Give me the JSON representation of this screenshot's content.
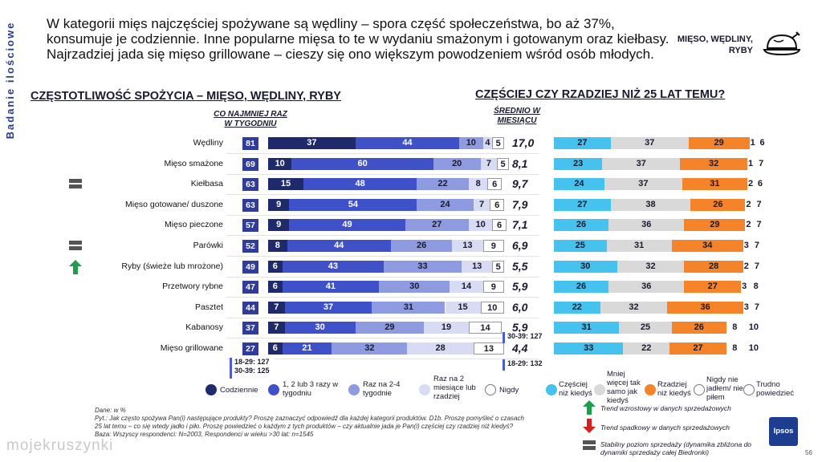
{
  "side_label": "Badanie ilościowe",
  "headline": "W kategorii mięs najczęściej spożywane są wędliny – spora część społeczeństwa, bo aż 37%, konsumuje je codziennie. Inne popularne mięsa to te w wydaniu smażonym i gotowanym oraz kiełbasy. Najrzadziej jada się mięso grillowane – cieszy się ono większym powodzeniem wśród osób młodych.",
  "topic_label": "MIĘSO, WĘDLINY, RYBY",
  "left_title": "CZĘSTOTLIWOŚĆ SPOŻYCIA – MIĘSO, WĘDLINY, RYBY",
  "right_title": "CZĘŚCIEJ CZY RZADZIEJ NIŻ 25 LAT TEMU?",
  "sub_head_weekly": "CO NAJMNIEJ RAZ W TYGODNIU",
  "sub_head_avg": "ŚREDNIO W MIESIĄCU",
  "colors": {
    "daily": "#1f2a6b",
    "weekly_1_3": "#3f51c9",
    "weekly_2_4": "#8e9be0",
    "rare": "#d7dbf3",
    "never": "#ffffff",
    "more_often": "#45c2ee",
    "same": "#d9d9d9",
    "less_often": "#f5832a",
    "not_eaten": "#ffffff",
    "hard_to_say": "#ffffff",
    "total_box": "#2f3c9c"
  },
  "chart_data": [
    {
      "type": "bar",
      "stacked": true,
      "orientation": "horizontal",
      "title": "CZĘSTOTLIWOŚĆ SPOŻYCIA – MIĘSO, WĘDLINY, RYBY",
      "categories": [
        "Wędliny",
        "Mięso smażone",
        "Kiełbasa",
        "Mięso gotowane/ duszone",
        "Mięso pieczone",
        "Parówki",
        "Ryby (świeże lub mrożone)",
        "Przetwory rybne",
        "Pasztet",
        "Kabanosy",
        "Mięso grillowane"
      ],
      "weekly_total": [
        "81",
        "69",
        "63",
        "63",
        "57",
        "52",
        "49",
        "47",
        "44",
        "37",
        "27"
      ],
      "monthly_avg": [
        "17,0",
        "8,1",
        "9,7",
        "7,9",
        "7,1",
        "6,9",
        "5,5",
        "5,9",
        "6,0",
        "5,9",
        "4,4"
      ],
      "series": [
        {
          "name": "Codziennie",
          "values": [
            37,
            10,
            15,
            9,
            9,
            8,
            6,
            6,
            7,
            7,
            6
          ]
        },
        {
          "name": "1, 2 lub 3 razy w tygodniu",
          "values": [
            44,
            60,
            48,
            54,
            49,
            44,
            43,
            41,
            37,
            30,
            21
          ]
        },
        {
          "name": "Raz na 2-4 tygodnie",
          "values": [
            10,
            20,
            22,
            24,
            27,
            26,
            33,
            30,
            31,
            29,
            32
          ]
        },
        {
          "name": "Raz na 2 miesiące lub rzadziej",
          "values": [
            4,
            7,
            8,
            7,
            10,
            13,
            13,
            14,
            15,
            19,
            28
          ]
        },
        {
          "name": "Nigdy",
          "values": [
            5,
            5,
            6,
            6,
            6,
            9,
            5,
            9,
            10,
            14,
            13
          ]
        }
      ],
      "annotations": {
        "grill_weekly": [
          "18-29:",
          "127",
          "30-39:",
          "125"
        ],
        "grill_avg": [
          "18-29:",
          "132"
        ],
        "kabanosy_avg": [
          "30-39:",
          "127"
        ]
      }
    },
    {
      "type": "bar",
      "stacked": true,
      "orientation": "horizontal",
      "title": "CZĘŚCIEJ CZY RZADZIEJ NIŻ 25 LAT TEMU?",
      "categories": [
        "Wędliny",
        "Mięso smażone",
        "Kiełbasa",
        "Mięso gotowane/ duszone",
        "Mięso pieczone",
        "Parówki",
        "Ryby (świeże lub mrożone)",
        "Przetwory rybne",
        "Pasztet",
        "Kabanosy",
        "Mięso grillowane"
      ],
      "series": [
        {
          "name": "Częściej niż kiedyś",
          "values": [
            27,
            23,
            24,
            27,
            26,
            25,
            30,
            26,
            22,
            31,
            33
          ]
        },
        {
          "name": "Mniej więcej tak samo jak kiedyś",
          "values": [
            37,
            37,
            37,
            38,
            36,
            31,
            32,
            36,
            32,
            25,
            22
          ]
        },
        {
          "name": "Rzadziej niż kiedyś",
          "values": [
            29,
            32,
            31,
            26,
            29,
            34,
            28,
            27,
            36,
            26,
            27
          ]
        },
        {
          "name": "Nigdy nie jadłem/ nie piłem",
          "values": [
            1,
            1,
            2,
            2,
            2,
            3,
            2,
            3,
            3,
            8,
            8
          ]
        },
        {
          "name": "Trudno powiedzieć",
          "values": [
            6,
            7,
            6,
            7,
            7,
            7,
            7,
            8,
            7,
            10,
            10
          ]
        }
      ]
    }
  ],
  "trends": {
    "Kiełbasa": "stable",
    "Parówki": "stable",
    "Ryby (świeże lub mrożone)": "up"
  },
  "legend": {
    "daily": "Codziennie",
    "w13": "1, 2 lub 3 razy w tygodniu",
    "w24": "Raz na 2-4 tygodnie",
    "rare": "Raz na 2 miesiące lub rzadziej",
    "never": "Nigdy",
    "more": "Częściej niż kiedyś",
    "same": "Mniej więcej tak samo jak kiedyś",
    "less": "Rzadziej niż kiedyś",
    "not_eaten": "Nigdy nie jadłem/ nie piłem",
    "hard": "Trudno powiedzieć"
  },
  "footnotes": {
    "data": "Dane: w %",
    "q": "Pyt.: Jak często spożywa Pan(i) następujące produkty? Proszę zaznaczyć odpowiedź dla każdej kategorii produktów. D1b. Proszę pomyśleć o czasach 25 lat temu – co się wtedy jadło i piło. Proszę powiedzieć o każdym z tych produktów – czy aktualnie jada je Pan(i) częściej czy rzadziej niż kiedyś?",
    "base": "Baza: Wszyscy respondenci: N=2003, Respondenci w wieku >30 lat: n=1545"
  },
  "trend_legend": {
    "up": "Trend wzrostowy w danych sprzedażowych",
    "down": "Trend spadkowy w danych sprzedażowych",
    "stable": "Stabilny poziom sprzedaży (dynamika zbliżona do dynamiki sprzedaży całej Biedronki)"
  },
  "logo": "Ipsos",
  "page_number": "56",
  "watermark": "mojekruszynki"
}
